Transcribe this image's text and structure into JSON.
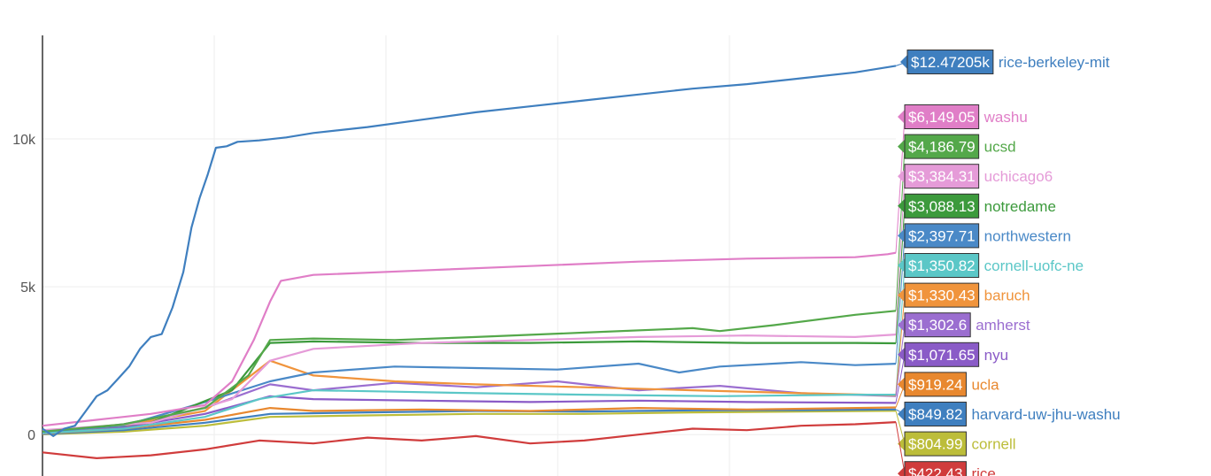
{
  "chart_data": {
    "type": "line",
    "title": "",
    "xlabel": "",
    "ylabel": "",
    "ylim": [
      -1400,
      13500
    ],
    "y_ticks": [
      {
        "value": 0,
        "label": "0"
      },
      {
        "value": 5000,
        "label": "5k"
      },
      {
        "value": 10000,
        "label": "10k"
      }
    ],
    "grid": true,
    "legend": "right, value labels at line ends",
    "series": [
      {
        "name": "rice-berkeley-mit",
        "end_label": "$12.47205k",
        "color": "#3f7fbf",
        "points": [
          [
            0,
            200
          ],
          [
            4,
            -50
          ],
          [
            8,
            200
          ],
          [
            12,
            300
          ],
          [
            16,
            800
          ],
          [
            20,
            1300
          ],
          [
            24,
            1500
          ],
          [
            28,
            1900
          ],
          [
            32,
            2300
          ],
          [
            36,
            2900
          ],
          [
            40,
            3300
          ],
          [
            44,
            3400
          ],
          [
            48,
            4300
          ],
          [
            52,
            5500
          ],
          [
            55,
            7000
          ],
          [
            58,
            8000
          ],
          [
            61,
            8800
          ],
          [
            64,
            9700
          ],
          [
            68,
            9750
          ],
          [
            72,
            9900
          ],
          [
            80,
            9950
          ],
          [
            90,
            10050
          ],
          [
            100,
            10200
          ],
          [
            120,
            10400
          ],
          [
            140,
            10650
          ],
          [
            160,
            10900
          ],
          [
            180,
            11100
          ],
          [
            200,
            11300
          ],
          [
            220,
            11500
          ],
          [
            240,
            11700
          ],
          [
            260,
            11850
          ],
          [
            280,
            12050
          ],
          [
            300,
            12250
          ],
          [
            315,
            12472
          ]
        ]
      },
      {
        "name": "washu",
        "end_label": "$6,149.05",
        "color": "#e07ec7",
        "points": [
          [
            0,
            300
          ],
          [
            20,
            500
          ],
          [
            40,
            700
          ],
          [
            60,
            1000
          ],
          [
            70,
            1800
          ],
          [
            78,
            3200
          ],
          [
            84,
            4500
          ],
          [
            88,
            5200
          ],
          [
            100,
            5400
          ],
          [
            140,
            5550
          ],
          [
            180,
            5700
          ],
          [
            220,
            5850
          ],
          [
            260,
            5950
          ],
          [
            300,
            6000
          ],
          [
            312,
            6100
          ],
          [
            315,
            6149
          ]
        ]
      },
      {
        "name": "ucsd",
        "end_label": "$4,186.79",
        "color": "#54a84a",
        "points": [
          [
            0,
            100
          ],
          [
            30,
            350
          ],
          [
            60,
            900
          ],
          [
            76,
            2000
          ],
          [
            84,
            3200
          ],
          [
            100,
            3250
          ],
          [
            130,
            3200
          ],
          [
            160,
            3300
          ],
          [
            200,
            3450
          ],
          [
            240,
            3600
          ],
          [
            250,
            3500
          ],
          [
            270,
            3700
          ],
          [
            300,
            4050
          ],
          [
            315,
            4187
          ]
        ]
      },
      {
        "name": "uchicago6",
        "end_label": "$3,384.31",
        "color": "#e59bd8",
        "points": [
          [
            0,
            150
          ],
          [
            40,
            400
          ],
          [
            70,
            1200
          ],
          [
            84,
            2500
          ],
          [
            100,
            2900
          ],
          [
            140,
            3100
          ],
          [
            180,
            3200
          ],
          [
            220,
            3300
          ],
          [
            260,
            3350
          ],
          [
            300,
            3300
          ],
          [
            315,
            3384
          ]
        ]
      },
      {
        "name": "notredame",
        "end_label": "$3,088.13",
        "color": "#3c9a3c",
        "points": [
          [
            0,
            120
          ],
          [
            40,
            400
          ],
          [
            70,
            1500
          ],
          [
            84,
            3100
          ],
          [
            100,
            3150
          ],
          [
            140,
            3100
          ],
          [
            180,
            3100
          ],
          [
            220,
            3150
          ],
          [
            260,
            3100
          ],
          [
            300,
            3100
          ],
          [
            315,
            3088
          ]
        ]
      },
      {
        "name": "northwestern",
        "end_label": "$2,397.71",
        "color": "#4a89c7",
        "points": [
          [
            0,
            100
          ],
          [
            30,
            300
          ],
          [
            60,
            1100
          ],
          [
            84,
            1800
          ],
          [
            100,
            2100
          ],
          [
            130,
            2300
          ],
          [
            160,
            2250
          ],
          [
            190,
            2200
          ],
          [
            220,
            2400
          ],
          [
            235,
            2100
          ],
          [
            250,
            2300
          ],
          [
            280,
            2450
          ],
          [
            300,
            2350
          ],
          [
            315,
            2398
          ]
        ]
      },
      {
        "name": "cornell-uofc-ne",
        "end_label": "$1,350.82",
        "color": "#5bc7c7",
        "points": [
          [
            0,
            50
          ],
          [
            30,
            200
          ],
          [
            60,
            600
          ],
          [
            80,
            1200
          ],
          [
            100,
            1500
          ],
          [
            130,
            1450
          ],
          [
            160,
            1400
          ],
          [
            200,
            1350
          ],
          [
            250,
            1300
          ],
          [
            300,
            1350
          ],
          [
            315,
            1351
          ]
        ]
      },
      {
        "name": "baruch",
        "end_label": "$1,330.43",
        "color": "#f0943c",
        "points": [
          [
            0,
            80
          ],
          [
            30,
            300
          ],
          [
            60,
            800
          ],
          [
            84,
            2500
          ],
          [
            100,
            2000
          ],
          [
            130,
            1800
          ],
          [
            160,
            1700
          ],
          [
            200,
            1600
          ],
          [
            240,
            1500
          ],
          [
            280,
            1400
          ],
          [
            315,
            1330
          ]
        ]
      },
      {
        "name": "amherst",
        "end_label": "$1,302.6",
        "color": "#9b6ed0",
        "points": [
          [
            0,
            60
          ],
          [
            30,
            350
          ],
          [
            60,
            900
          ],
          [
            84,
            1700
          ],
          [
            100,
            1500
          ],
          [
            130,
            1750
          ],
          [
            160,
            1600
          ],
          [
            190,
            1800
          ],
          [
            220,
            1500
          ],
          [
            250,
            1650
          ],
          [
            280,
            1400
          ],
          [
            315,
            1303
          ]
        ]
      },
      {
        "name": "nyu",
        "end_label": "$1,071.65",
        "color": "#8a5bc7",
        "points": [
          [
            0,
            40
          ],
          [
            30,
            250
          ],
          [
            60,
            700
          ],
          [
            84,
            1300
          ],
          [
            100,
            1200
          ],
          [
            140,
            1150
          ],
          [
            180,
            1100
          ],
          [
            220,
            1150
          ],
          [
            260,
            1100
          ],
          [
            315,
            1072
          ]
        ]
      },
      {
        "name": "ucla",
        "end_label": "$919.24",
        "color": "#e8882f",
        "points": [
          [
            0,
            30
          ],
          [
            30,
            200
          ],
          [
            60,
            500
          ],
          [
            84,
            900
          ],
          [
            100,
            800
          ],
          [
            140,
            850
          ],
          [
            180,
            800
          ],
          [
            220,
            900
          ],
          [
            260,
            850
          ],
          [
            315,
            919
          ]
        ]
      },
      {
        "name": "harvard-uw-jhu-washu",
        "end_label": "$849.82",
        "color": "#3f7fbf",
        "points": [
          [
            0,
            20
          ],
          [
            30,
            150
          ],
          [
            60,
            400
          ],
          [
            84,
            700
          ],
          [
            120,
            750
          ],
          [
            160,
            800
          ],
          [
            200,
            780
          ],
          [
            240,
            820
          ],
          [
            280,
            830
          ],
          [
            315,
            850
          ]
        ]
      },
      {
        "name": "cornell",
        "end_label": "$804.99",
        "color": "#bcbd3a",
        "points": [
          [
            0,
            10
          ],
          [
            30,
            100
          ],
          [
            60,
            300
          ],
          [
            84,
            600
          ],
          [
            120,
            650
          ],
          [
            160,
            700
          ],
          [
            200,
            700
          ],
          [
            240,
            750
          ],
          [
            280,
            780
          ],
          [
            315,
            805
          ]
        ]
      },
      {
        "name": "rice",
        "end_label": "$422.43",
        "color": "#d03c3c",
        "points": [
          [
            0,
            -600
          ],
          [
            20,
            -800
          ],
          [
            40,
            -700
          ],
          [
            60,
            -500
          ],
          [
            80,
            -200
          ],
          [
            100,
            -300
          ],
          [
            120,
            -100
          ],
          [
            140,
            -200
          ],
          [
            160,
            -50
          ],
          [
            180,
            -300
          ],
          [
            200,
            -200
          ],
          [
            220,
            0
          ],
          [
            240,
            200
          ],
          [
            260,
            150
          ],
          [
            280,
            300
          ],
          [
            300,
            350
          ],
          [
            315,
            422
          ]
        ]
      }
    ]
  }
}
